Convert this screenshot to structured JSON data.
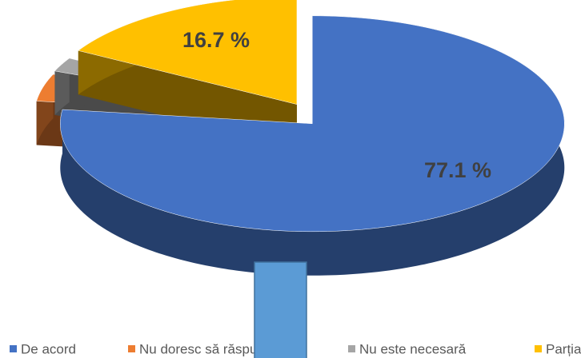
{
  "chart_data": {
    "type": "pie",
    "categories": [
      "De acord",
      "Nu doresc să răspund",
      "Nu este necesară",
      "Parțial"
    ],
    "values": [
      77.1,
      4.1,
      2.1,
      16.7
    ],
    "value_labels": [
      "77.1 %",
      null,
      null,
      "16.7 %"
    ],
    "colors": [
      "#4472c4",
      "#ed7d31",
      "#a5a5a5",
      "#ffc000"
    ],
    "legend": "bottom"
  }
}
